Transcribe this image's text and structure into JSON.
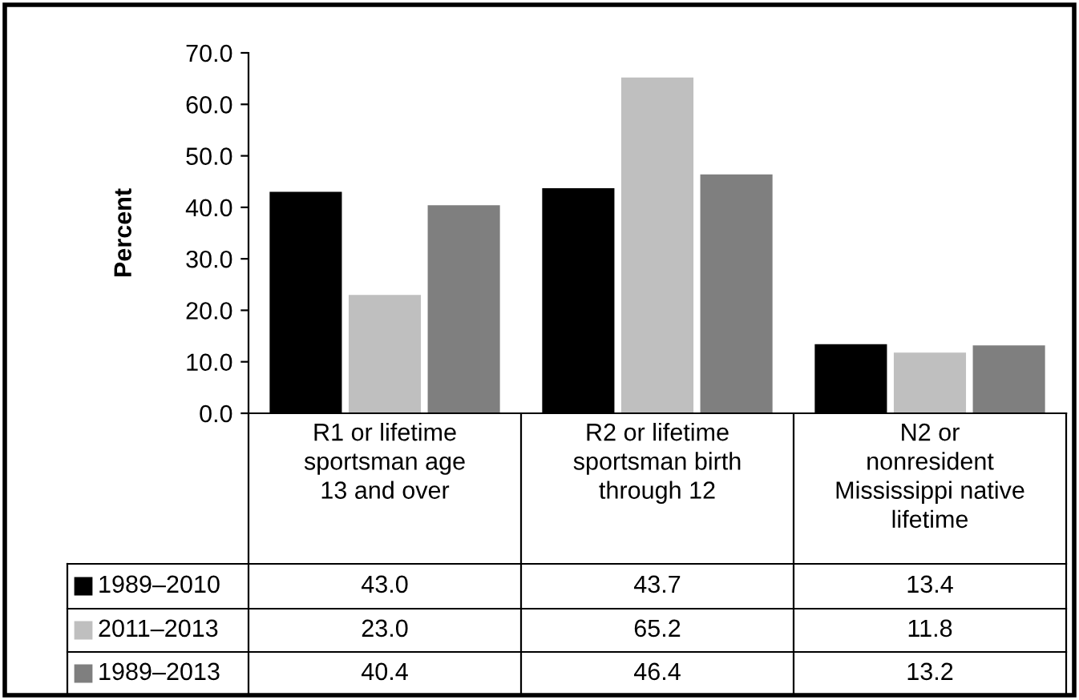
{
  "chart_data": {
    "type": "bar",
    "ylabel": "Percent",
    "categories": [
      "R1 or lifetime\nsportsman age\n13 and over",
      "R2 or lifetime\nsportsman birth\nthrough 12",
      "N2 or\nnonresident\nMississippi native\nlifetime"
    ],
    "series": [
      {
        "name": "1989–2010",
        "color": "#000000",
        "values": [
          43.0,
          43.7,
          13.4
        ],
        "value_labels": [
          "43.0",
          "43.7",
          "13.4"
        ]
      },
      {
        "name": "2011–2013",
        "color": "#bfbfbf",
        "values": [
          23.0,
          65.2,
          11.8
        ],
        "value_labels": [
          "23.0",
          "65.2",
          "11.8"
        ]
      },
      {
        "name": "1989–2013",
        "color": "#7f7f7f",
        "values": [
          40.4,
          46.4,
          13.2
        ],
        "value_labels": [
          "40.4",
          "46.4",
          "13.2"
        ]
      }
    ],
    "ylim": [
      0,
      70
    ],
    "yticks": [
      {
        "value": 0,
        "label": "0.0"
      },
      {
        "value": 10,
        "label": "10.0"
      },
      {
        "value": 20,
        "label": "20.0"
      },
      {
        "value": 30,
        "label": "30.0"
      },
      {
        "value": 40,
        "label": "40.0"
      },
      {
        "value": 50,
        "label": "50.0"
      },
      {
        "value": 60,
        "label": "60.0"
      },
      {
        "value": 70,
        "label": "70.0"
      }
    ],
    "legend": "bottom left",
    "grid": false
  }
}
